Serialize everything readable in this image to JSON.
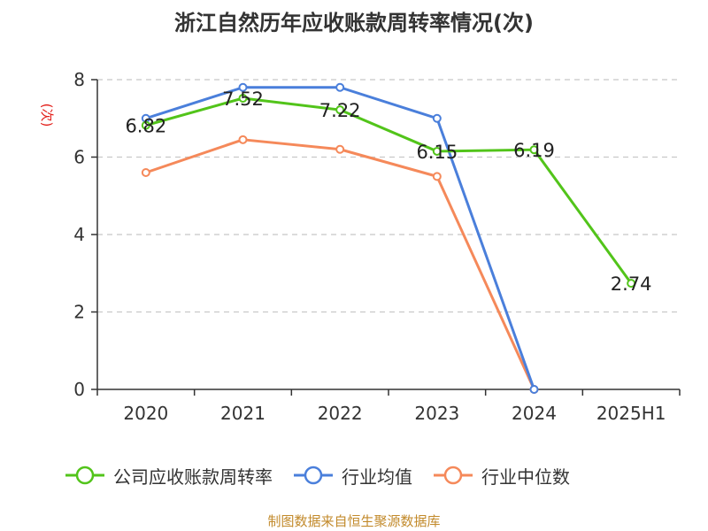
{
  "title": "浙江自然历年应收账款周转率情况(次)",
  "source": "制图数据来自恒生聚源数据库",
  "colors": {
    "source_text": "#c28a2b",
    "ylabel": "#e3211c",
    "axis": "#333333",
    "grid": "#c8c8c8"
  },
  "chart_data": {
    "type": "line",
    "title": "浙江自然历年应收账款周转率情况(次)",
    "xlabel": "",
    "ylabel": "(次)",
    "categories": [
      "2020",
      "2021",
      "2022",
      "2023",
      "2024",
      "2025H1"
    ],
    "ylim": [
      0,
      8
    ],
    "yticks": [
      0,
      2,
      4,
      6,
      8
    ],
    "grid": true,
    "grid_style": "dashed-horizontal",
    "legend_position": "bottom",
    "series": [
      {
        "name": "公司应收账款周转率",
        "color": "#52c41a",
        "values": [
          6.82,
          7.52,
          7.22,
          6.15,
          6.19,
          2.74
        ],
        "labels": [
          "6.82",
          "7.52",
          "7.22",
          "6.15",
          "6.19",
          "2.74"
        ]
      },
      {
        "name": "行业均值",
        "color": "#4a7fdb",
        "values": [
          7.0,
          7.8,
          7.8,
          7.0,
          0.0,
          null
        ]
      },
      {
        "name": "行业中位数",
        "color": "#f5895a",
        "values": [
          5.6,
          6.45,
          6.2,
          5.5,
          0.0,
          null
        ]
      }
    ]
  }
}
